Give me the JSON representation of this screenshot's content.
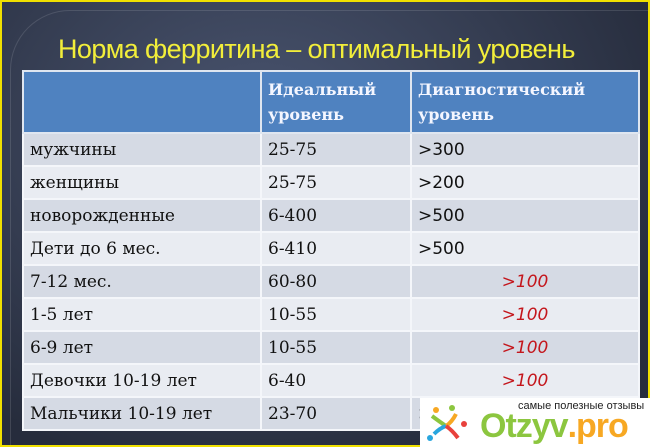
{
  "title": "Норма ферритина – оптимальный уровень",
  "table": {
    "headers": [
      "",
      "Идеальный уровень",
      "Диагностический уровень"
    ],
    "rows": [
      {
        "group": "мужчины",
        "ideal": "25-75",
        "diag": ">300",
        "highlight": false
      },
      {
        "group": "женщины",
        "ideal": "25-75",
        "diag": ">200",
        "highlight": false
      },
      {
        "group": "новорожденные",
        "ideal": "6-400",
        "diag": ">500",
        "highlight": false
      },
      {
        "group": "Дети до 6 мес.",
        "ideal": "6-410",
        "diag": ">500",
        "highlight": false
      },
      {
        "group": "7-12 мес.",
        "ideal": "60-80",
        "diag": ">100",
        "highlight": true
      },
      {
        "group": "1-5 лет",
        "ideal": "10-55",
        "diag": ">100",
        "highlight": true
      },
      {
        "group": "6-9 лет",
        "ideal": "10-55",
        "diag": ">100",
        "highlight": true
      },
      {
        "group": "Девочки 10-19 лет",
        "ideal": "6-40",
        "diag": ">100",
        "highlight": true
      },
      {
        "group": "Мальчики 10-19 лет",
        "ideal": "23-70",
        "diag": ">",
        "highlight": false
      }
    ]
  },
  "watermark": {
    "tagline": "самые полезные отзывы",
    "brand": "Otzyv",
    "brand_tld": ".pro"
  }
}
